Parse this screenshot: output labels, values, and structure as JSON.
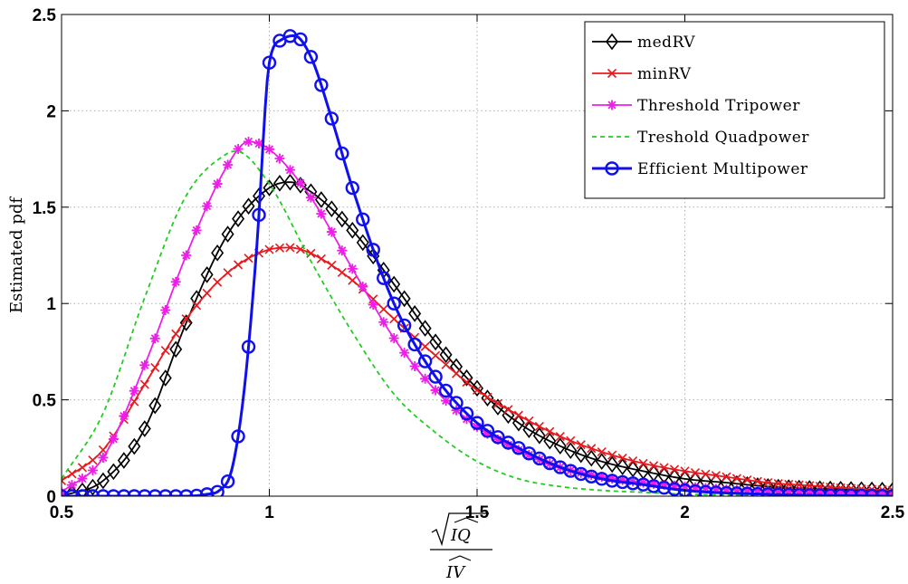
{
  "chart_data": {
    "type": "line",
    "title": "",
    "xlabel": "√(IQ^)/IV^",
    "ylabel": "Estimated pdf",
    "xlim": [
      0.5,
      2.5
    ],
    "ylim": [
      0,
      2.5
    ],
    "xticks": [
      0.5,
      1,
      1.5,
      2,
      2.5
    ],
    "xtick_labels": [
      "0.5",
      "1",
      "1.5",
      "2",
      "2.5"
    ],
    "yticks": [
      0,
      0.5,
      1,
      1.5,
      2,
      2.5
    ],
    "ytick_labels": [
      "0",
      "0.5",
      "1",
      "1.5",
      "2",
      "2.5"
    ],
    "grid": true,
    "legend_position": "top-right",
    "x_label_parts": {
      "numerator": "IQ",
      "denominator": "IV"
    },
    "series": [
      {
        "name": "medRV",
        "color": "#000000",
        "marker": "diamond",
        "dashed": false,
        "x": [
          0.5,
          0.6,
          0.7,
          0.8,
          0.9,
          1.0,
          1.05,
          1.1,
          1.2,
          1.3,
          1.4,
          1.5,
          1.6,
          1.7,
          1.8,
          1.9,
          2.0,
          2.1,
          2.2,
          2.3,
          2.4,
          2.5
        ],
        "y": [
          0.0,
          0.08,
          0.35,
          0.9,
          1.36,
          1.6,
          1.63,
          1.58,
          1.38,
          1.1,
          0.8,
          0.56,
          0.38,
          0.26,
          0.18,
          0.13,
          0.09,
          0.07,
          0.05,
          0.04,
          0.035,
          0.03
        ]
      },
      {
        "name": "minRV",
        "color": "#e8191e",
        "marker": "x",
        "dashed": false,
        "x": [
          0.5,
          0.6,
          0.7,
          0.8,
          0.9,
          1.0,
          1.05,
          1.1,
          1.2,
          1.3,
          1.4,
          1.5,
          1.6,
          1.7,
          1.8,
          1.9,
          2.0,
          2.1,
          2.2,
          2.3,
          2.4,
          2.5
        ],
        "y": [
          0.08,
          0.24,
          0.58,
          0.92,
          1.16,
          1.28,
          1.29,
          1.26,
          1.12,
          0.92,
          0.73,
          0.55,
          0.42,
          0.31,
          0.23,
          0.17,
          0.13,
          0.1,
          0.07,
          0.055,
          0.04,
          0.03
        ]
      },
      {
        "name": "Threshold Tripower",
        "color": "#ee1ee8",
        "marker": "star",
        "dashed": false,
        "x": [
          0.5,
          0.6,
          0.7,
          0.8,
          0.9,
          0.95,
          1.0,
          1.1,
          1.2,
          1.3,
          1.4,
          1.5,
          1.6,
          1.7,
          1.8,
          1.9,
          2.0,
          2.1,
          2.2,
          2.3,
          2.4,
          2.5
        ],
        "y": [
          0.02,
          0.2,
          0.68,
          1.25,
          1.72,
          1.84,
          1.8,
          1.55,
          1.18,
          0.82,
          0.55,
          0.36,
          0.24,
          0.15,
          0.1,
          0.07,
          0.05,
          0.035,
          0.025,
          0.02,
          0.015,
          0.01
        ]
      },
      {
        "name": "Treshold Quadpower",
        "color": "#22cc22",
        "marker": "none",
        "dashed": true,
        "x": [
          0.5,
          0.6,
          0.7,
          0.8,
          0.9,
          0.92,
          1.0,
          1.1,
          1.2,
          1.3,
          1.4,
          1.5,
          1.6,
          1.7,
          1.8,
          1.9,
          2.0,
          2.2,
          2.5
        ],
        "y": [
          0.09,
          0.43,
          1.03,
          1.56,
          1.78,
          1.79,
          1.62,
          1.22,
          0.85,
          0.53,
          0.33,
          0.18,
          0.09,
          0.05,
          0.03,
          0.02,
          0.01,
          0.005,
          0.002
        ]
      },
      {
        "name": "Efficient Multipower",
        "color": "#1010ee",
        "marker": "circle",
        "dashed": false,
        "x": [
          0.5,
          0.6,
          0.7,
          0.8,
          0.85,
          0.88,
          0.91,
          0.94,
          0.97,
          1.0,
          1.03,
          1.06,
          1.1,
          1.15,
          1.2,
          1.3,
          1.4,
          1.5,
          1.6,
          1.7,
          1.8,
          1.9,
          2.0,
          2.2,
          2.5
        ],
        "y": [
          0.0,
          0.0,
          0.0,
          0.0,
          0.01,
          0.03,
          0.14,
          0.56,
          1.3,
          2.25,
          2.37,
          2.39,
          2.28,
          1.96,
          1.6,
          1.0,
          0.62,
          0.38,
          0.25,
          0.15,
          0.09,
          0.06,
          0.03,
          0.01,
          0.0
        ]
      }
    ]
  }
}
